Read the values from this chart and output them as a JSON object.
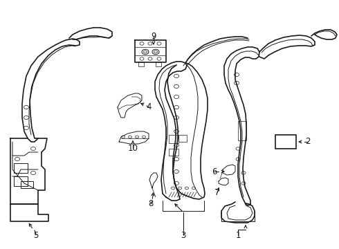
{
  "bg_color": "#ffffff",
  "fig_width": 4.9,
  "fig_height": 3.6,
  "dpi": 100,
  "lc": "#1a1a1a",
  "lw_outer": 1.2,
  "lw_inner": 0.7,
  "font_size": 8.5
}
